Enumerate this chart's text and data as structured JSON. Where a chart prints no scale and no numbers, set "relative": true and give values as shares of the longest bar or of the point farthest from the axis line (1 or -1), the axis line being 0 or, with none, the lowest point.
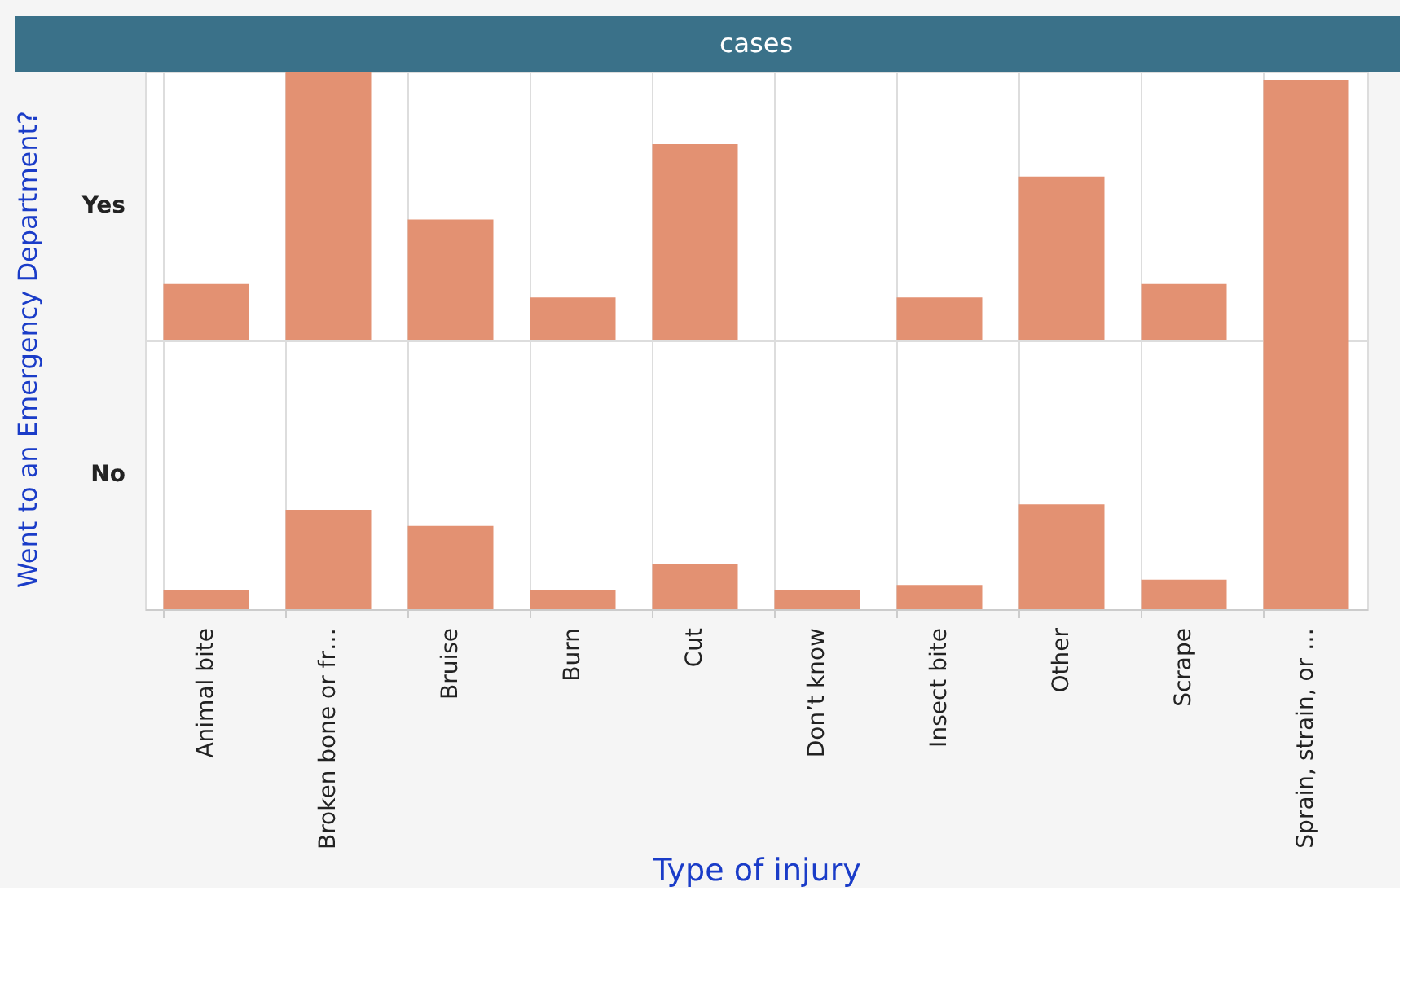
{
  "chart_data": [
    {
      "type": "bar",
      "title": "cases",
      "ylabel": "Went to an Emergency Department?",
      "annotations": [
        "Yes"
      ],
      "relative": true,
      "grid": "x",
      "tick_labels": false,
      "series": [
        {
          "color": "#e39172",
          "values": [
            0.21,
            1,
            0.45,
            0.16,
            0.73,
            0,
            0.16,
            0.61,
            0.21,
            0.97
          ]
        }
      ]
    },
    {
      "type": "bar",
      "xlabel": "Type of injury",
      "annotations": [
        "No"
      ],
      "relative": true,
      "grid": "x",
      "tick_labels": "x",
      "categories": [
        "Animal bite",
        "Broken bone or fr…",
        "Bruise",
        "Burn",
        "Cut",
        "Don’t know",
        "Insect bite",
        "Other",
        "Scrape",
        "Sprain, strain, or …"
      ],
      "series": [
        {
          "color": "#e39172",
          "values": [
            0.07,
            0.37,
            0.31,
            0.07,
            0.17,
            0.07,
            0.09,
            0.39,
            0.11,
            1
          ]
        }
      ]
    }
  ]
}
